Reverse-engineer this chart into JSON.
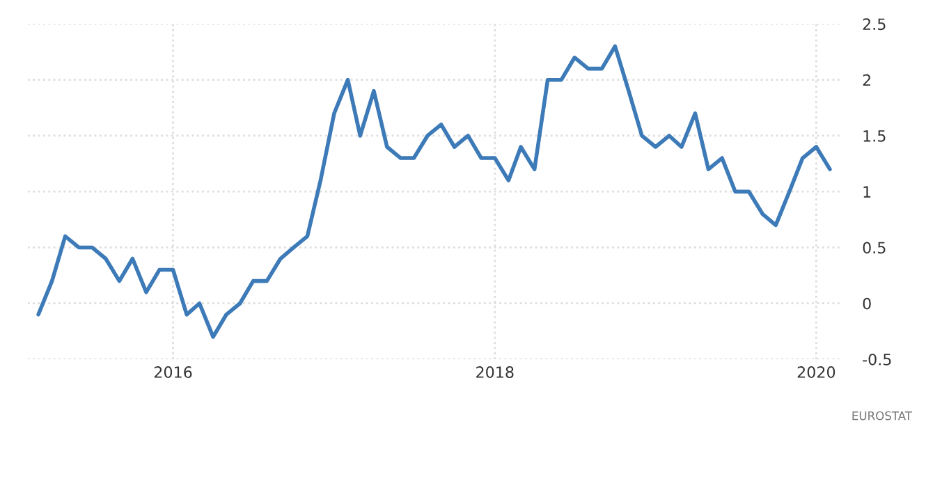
{
  "chart_data": {
    "type": "line",
    "x": [
      "2015-03",
      "2015-04",
      "2015-05",
      "2015-06",
      "2015-07",
      "2015-08",
      "2015-09",
      "2015-10",
      "2015-11",
      "2015-12",
      "2016-01",
      "2016-02",
      "2016-03",
      "2016-04",
      "2016-05",
      "2016-06",
      "2016-07",
      "2016-08",
      "2016-09",
      "2016-10",
      "2016-11",
      "2016-12",
      "2017-01",
      "2017-02",
      "2017-03",
      "2017-04",
      "2017-05",
      "2017-06",
      "2017-07",
      "2017-08",
      "2017-09",
      "2017-10",
      "2017-11",
      "2017-12",
      "2018-01",
      "2018-02",
      "2018-03",
      "2018-04",
      "2018-05",
      "2018-06",
      "2018-07",
      "2018-08",
      "2018-09",
      "2018-10",
      "2018-11",
      "2018-12",
      "2019-01",
      "2019-02",
      "2019-03",
      "2019-04",
      "2019-05",
      "2019-06",
      "2019-07",
      "2019-08",
      "2019-09",
      "2019-10",
      "2019-11",
      "2019-12",
      "2020-01",
      "2020-02"
    ],
    "series": [
      {
        "color": "#3d7ab8",
        "values": [
          -0.1,
          0.2,
          0.6,
          0.5,
          0.5,
          0.4,
          0.2,
          0.4,
          0.1,
          0.3,
          0.3,
          -0.1,
          0.0,
          -0.3,
          -0.1,
          0.0,
          0.2,
          0.2,
          0.4,
          0.5,
          0.6,
          1.1,
          1.7,
          2.0,
          1.5,
          1.9,
          1.4,
          1.3,
          1.3,
          1.5,
          1.6,
          1.4,
          1.5,
          1.3,
          1.3,
          1.1,
          1.4,
          1.2,
          2.0,
          2.0,
          2.2,
          2.1,
          2.1,
          2.3,
          1.9,
          1.5,
          1.4,
          1.5,
          1.4,
          1.7,
          1.2,
          1.3,
          1.0,
          1.0,
          0.8,
          0.7,
          1.0,
          1.3,
          1.4,
          1.2
        ]
      }
    ],
    "xlim": [
      "2015-02-05",
      "2020-03-01"
    ],
    "xticks": [
      {
        "value": "2016",
        "label": "2016"
      },
      {
        "value": "2018",
        "label": "2018"
      },
      {
        "value": "2020",
        "label": "2020"
      }
    ],
    "ylim": [
      -0.5,
      2.5
    ],
    "yticks": [
      -0.5,
      0,
      0.5,
      1,
      1.5,
      2,
      2.5
    ],
    "grid": true,
    "line_style": "solid",
    "annotations": [
      "EUROSTAT"
    ]
  }
}
